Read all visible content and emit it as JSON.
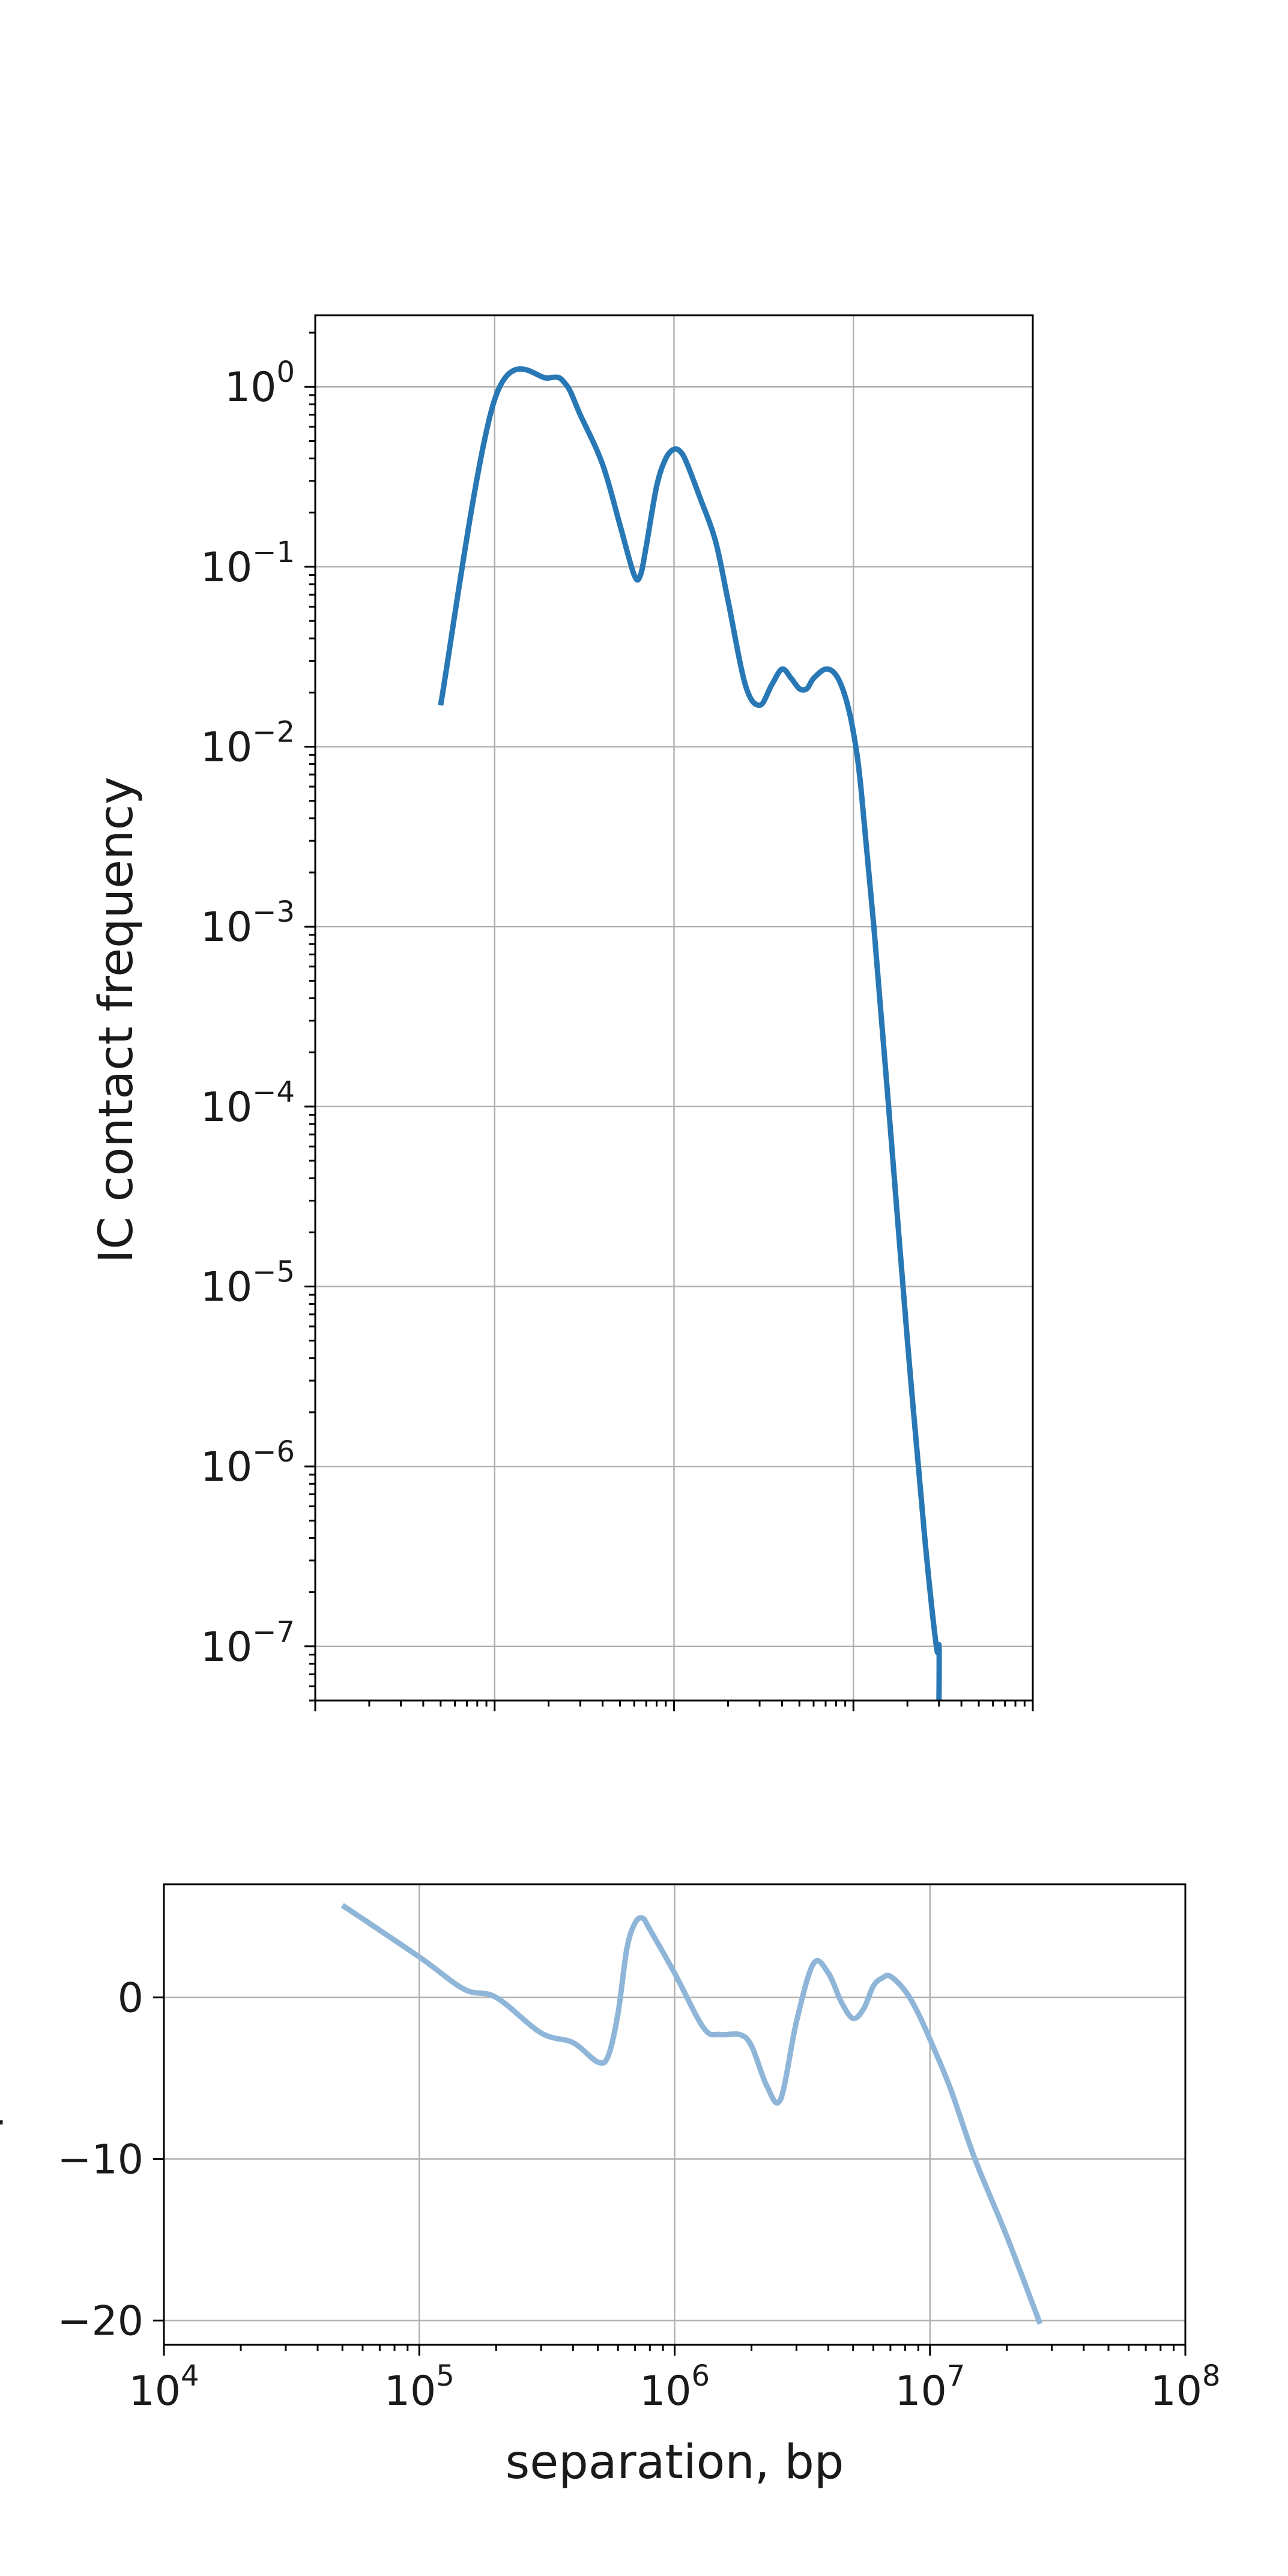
{
  "chart_data": [
    {
      "type": "line",
      "title": "",
      "xlabel": "",
      "ylabel": "IC contact frequency",
      "x_scale": "log",
      "y_scale": "log",
      "xlim": [
        10000,
        100000000
      ],
      "ylim": [
        5e-08,
        2.5
      ],
      "x_ticks": [
        100000,
        1000000,
        10000000
      ],
      "y_ticks": [
        {
          "value": 1.0,
          "base": "10",
          "exp": "0"
        },
        {
          "value": 0.1,
          "base": "10",
          "exp": "−1"
        },
        {
          "value": 0.01,
          "base": "10",
          "exp": "−2"
        },
        {
          "value": 0.001,
          "base": "10",
          "exp": "−3"
        },
        {
          "value": 0.0001,
          "base": "10",
          "exp": "−4"
        },
        {
          "value": 1e-05,
          "base": "10",
          "exp": "−5"
        },
        {
          "value": 1e-06,
          "base": "10",
          "exp": "−6"
        },
        {
          "value": 1e-07,
          "base": "10",
          "exp": "−7"
        }
      ],
      "grid": true,
      "color": "#2878b5",
      "series": [
        {
          "x": [
            50000,
            100000,
            200000,
            250000,
            300000,
            400000,
            500000,
            600000,
            650000,
            700000,
            800000,
            900000,
            1000000,
            1100000,
            1200000,
            1400000,
            1700000,
            2000000,
            2500000,
            3000000,
            3500000,
            4000000,
            4500000,
            5000000,
            5500000,
            6000000,
            7000000,
            8000000,
            9000000,
            10000000,
            11000000,
            13000000,
            16000000,
            20000000,
            25000000,
            29000000,
            30000000,
            30000000
          ],
          "y": [
            0.017,
            0.85,
            1.12,
            1.03,
            0.7,
            0.37,
            0.17,
            0.09,
            0.09,
            0.13,
            0.28,
            0.4,
            0.45,
            0.43,
            0.36,
            0.24,
            0.14,
            0.065,
            0.022,
            0.017,
            0.022,
            0.027,
            0.024,
            0.021,
            0.021,
            0.024,
            0.027,
            0.025,
            0.019,
            0.012,
            0.006,
            0.001,
            8e-05,
            5e-06,
            4e-07,
            1e-07,
            1e-07,
            4e-08
          ]
        }
      ]
    },
    {
      "type": "line",
      "title": "",
      "xlabel": "separation, bp",
      "ylabel": "slope",
      "x_scale": "log",
      "y_scale": "linear",
      "xlim": [
        10000,
        100000000
      ],
      "ylim": [
        -21.5,
        7
      ],
      "x_ticks": [
        {
          "value": 10000,
          "base": "10",
          "exp": "4"
        },
        {
          "value": 100000,
          "base": "10",
          "exp": "5"
        },
        {
          "value": 1000000,
          "base": "10",
          "exp": "6"
        },
        {
          "value": 10000000,
          "base": "10",
          "exp": "7"
        },
        {
          "value": 100000000,
          "base": "10",
          "exp": "8"
        }
      ],
      "y_ticks": [
        {
          "value": 0,
          "label": "0"
        },
        {
          "value": -10,
          "label": "−10"
        },
        {
          "value": -20,
          "label": "−20"
        }
      ],
      "grid": true,
      "color": "#8fb6d8",
      "series": [
        {
          "x": [
            50000,
            100000,
            150000,
            200000,
            300000,
            400000,
            500000,
            550000,
            600000,
            650000,
            700000,
            750000,
            800000,
            1000000,
            1300000,
            1500000,
            1800000,
            2000000,
            2300000,
            2600000,
            3000000,
            3500000,
            4000000,
            4500000,
            5000000,
            5500000,
            6000000,
            6500000,
            7000000,
            8000000,
            9000000,
            10000000,
            12000000,
            15000000,
            20000000,
            27000000
          ],
          "y": [
            5.7,
            2.5,
            0.5,
            0.0,
            -2.2,
            -2.8,
            -4.0,
            -3.6,
            -1.0,
            3.0,
            4.6,
            4.9,
            4.2,
            1.5,
            -1.9,
            -2.3,
            -2.3,
            -3.0,
            -5.5,
            -6.3,
            -1.5,
            2.1,
            1.5,
            -0.3,
            -1.3,
            -0.7,
            0.7,
            1.2,
            1.3,
            0.4,
            -1.0,
            -2.6,
            -5.6,
            -10.0,
            -14.8,
            -20.2
          ]
        }
      ]
    }
  ]
}
